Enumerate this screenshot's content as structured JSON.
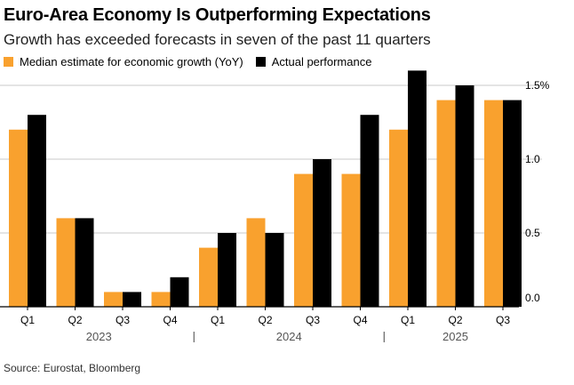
{
  "colors": {
    "estimate": "#f9a12e",
    "actual": "#000000",
    "grid": "#c8c8c8",
    "axis": "#000000",
    "year_text": "#555555"
  },
  "chart_data": {
    "type": "bar",
    "title": "Euro-Area Economy Is Outperforming Expectations",
    "subtitle": "Growth has exceeded forecasts in seven of the past 11 quarters",
    "categories": [
      "Q1",
      "Q2",
      "Q3",
      "Q4",
      "Q1",
      "Q2",
      "Q3",
      "Q4",
      "Q1",
      "Q2",
      "Q3"
    ],
    "years": [
      {
        "label": "2023",
        "start": 0,
        "end": 3
      },
      {
        "label": "2024",
        "start": 4,
        "end": 7
      },
      {
        "label": "2025",
        "start": 8,
        "end": 10
      }
    ],
    "series": [
      {
        "name": "Median estimate for economic growth (YoY)",
        "values": [
          1.2,
          0.6,
          0.1,
          0.1,
          0.4,
          0.6,
          0.9,
          0.9,
          1.2,
          1.4,
          1.4
        ]
      },
      {
        "name": "Actual performance",
        "values": [
          1.3,
          0.6,
          0.1,
          0.2,
          0.5,
          0.5,
          1.0,
          1.3,
          1.6,
          1.5,
          1.4
        ]
      }
    ],
    "yticks": [
      {
        "value": 1.5,
        "label": "1.5%"
      },
      {
        "value": 1.0,
        "label": "1.0"
      },
      {
        "value": 0.5,
        "label": "0.5"
      },
      {
        "value": 0.0,
        "label": "0.0"
      }
    ],
    "ylim": [
      0,
      1.5
    ],
    "xlabel": "",
    "ylabel": "",
    "legend_position": "top-left",
    "grid": true
  },
  "source": "Source: Eurostat, Bloomberg"
}
